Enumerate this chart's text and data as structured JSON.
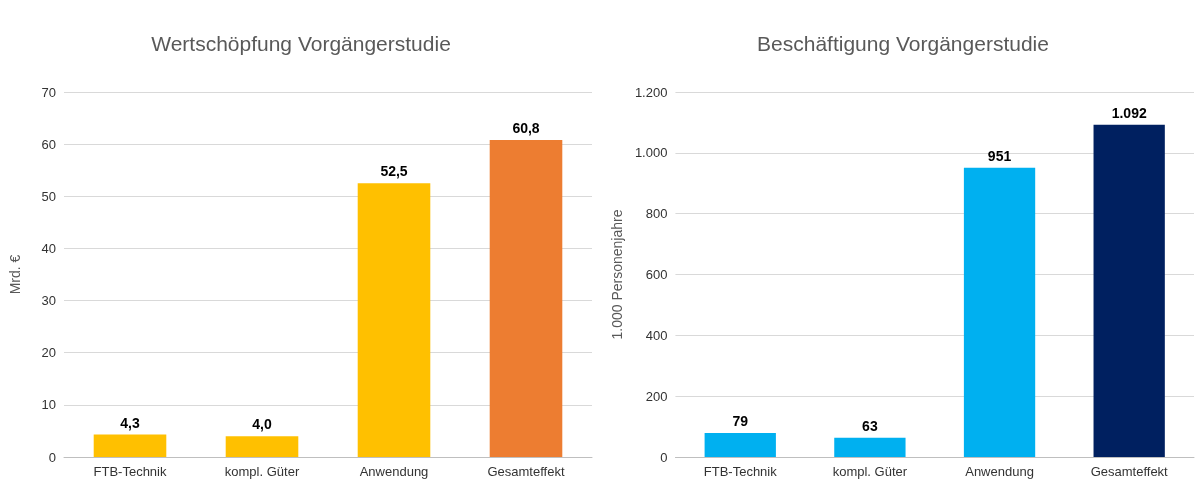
{
  "chart_data": [
    {
      "type": "bar",
      "title": "Wertschöpfung Vorgängerstudie",
      "ylabel": "Mrd. €",
      "categories": [
        "FTB-Technik",
        "kompl. Güter",
        "Anwendung",
        "Gesamteffekt"
      ],
      "values": [
        4.3,
        4.0,
        52.5,
        60.8
      ],
      "colors": [
        "#ffc000",
        "#ffc000",
        "#ffc000",
        "#ed7d31"
      ],
      "value_labels": [
        "4,3",
        "4,0",
        "52,5",
        "60,8"
      ],
      "ylim": [
        0,
        70
      ],
      "yticks": [
        0,
        10,
        20,
        30,
        40,
        50,
        60,
        70
      ],
      "grid": "y"
    },
    {
      "type": "bar",
      "title": "Beschäftigung Vorgängerstudie",
      "ylabel": "1.000 Personenjahre",
      "categories": [
        "FTB-Technik",
        "kompl. Güter",
        "Anwendung",
        "Gesamteffekt"
      ],
      "values": [
        79,
        63,
        951,
        1092
      ],
      "colors": [
        "#00b0f0",
        "#00b0f0",
        "#00b0f0",
        "#002060"
      ],
      "value_labels": [
        "79",
        "63",
        "951",
        "1.092"
      ],
      "ylim": [
        0,
        1200
      ],
      "yticks": [
        0,
        200,
        400,
        600,
        800,
        {
          "value": 1000,
          "label": "1.000"
        },
        {
          "value": 1200,
          "label": "1.200"
        }
      ],
      "grid": "y"
    }
  ]
}
